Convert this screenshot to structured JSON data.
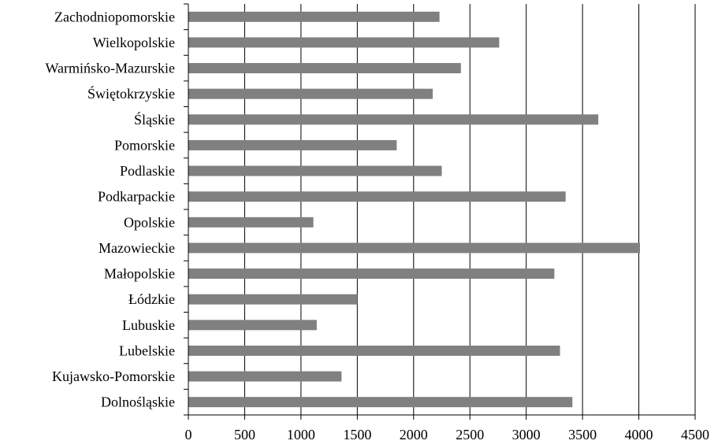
{
  "chart_data": {
    "type": "bar",
    "orientation": "horizontal",
    "title": "",
    "xlabel": "",
    "ylabel": "",
    "xlim": [
      0,
      4500
    ],
    "x_ticks": [
      0,
      500,
      1000,
      1500,
      2000,
      2500,
      3000,
      3500,
      4000,
      4500
    ],
    "grid": "vertical",
    "legend": "none",
    "bar_color": "#808080",
    "categories": [
      "Zachodniopomorskie",
      "Wielkopolskie",
      "Warmińsko-Mazurskie",
      "Świętokrzyskie",
      "Śląskie",
      "Pomorskie",
      "Podlaskie",
      "Podkarpackie",
      "Opolskie",
      "Mazowieckie",
      "Małopolskie",
      "Łódzkie",
      "Lubuskie",
      "Lubelskie",
      "Kujawsko-Pomorskie",
      "Dolnośląskie"
    ],
    "values": [
      2230,
      2760,
      2420,
      2170,
      3640,
      1850,
      2250,
      3350,
      1110,
      4010,
      3250,
      1500,
      1140,
      3300,
      1360,
      3410
    ]
  }
}
